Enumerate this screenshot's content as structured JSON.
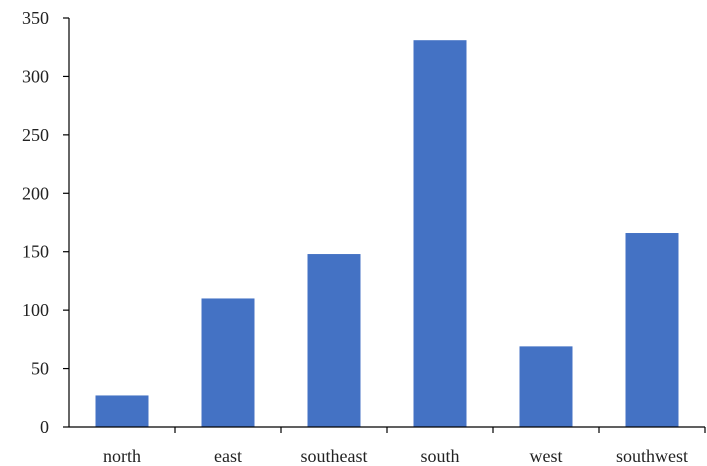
{
  "chart_data": {
    "type": "bar",
    "title": "",
    "xlabel": "",
    "ylabel": "",
    "categories": [
      "north",
      "east",
      "southeast",
      "south",
      "west",
      "southwest"
    ],
    "values": [
      27,
      110,
      148,
      331,
      69,
      166
    ],
    "ylim": [
      0,
      350
    ],
    "yticks": [
      0,
      50,
      100,
      150,
      200,
      250,
      300,
      350
    ],
    "grid": false,
    "legend": "none",
    "bar_color": "#4472C4"
  }
}
